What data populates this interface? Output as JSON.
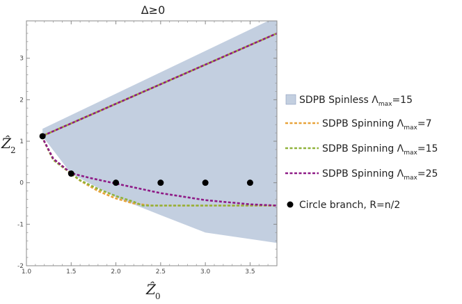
{
  "chart_data": {
    "type": "line",
    "title": "Δ≥0",
    "xlabel": "Ẑ",
    "xlabel_sub": "0",
    "ylabel": "Ẑ",
    "ylabel_sub": "2",
    "xlim": [
      1.0,
      3.8
    ],
    "ylim": [
      -2.0,
      3.9
    ],
    "x_ticks": [
      1.0,
      1.5,
      2.0,
      2.5,
      3.0,
      3.5
    ],
    "x_tick_labels": [
      "1.0",
      "1.5",
      "2.0",
      "2.5",
      "3.0",
      "3.5"
    ],
    "y_ticks": [
      -2,
      -1,
      0,
      1,
      2,
      3
    ],
    "y_tick_labels": [
      "-2",
      "-1",
      "0",
      "1",
      "2",
      "3"
    ],
    "grid": false,
    "legend_position": "right",
    "region": {
      "name": "SDPB Spinless Λ",
      "name_sub": "max",
      "name_tail": "=15",
      "color": "#c3cfe0",
      "upper": [
        [
          1.18,
          1.3
        ],
        [
          3.8,
          4.0
        ]
      ],
      "lower": [
        [
          1.18,
          1.12
        ],
        [
          1.5,
          0.22
        ],
        [
          2.0,
          -0.35
        ],
        [
          2.5,
          -0.78
        ],
        [
          3.0,
          -1.2
        ],
        [
          3.8,
          -1.45
        ]
      ]
    },
    "series": [
      {
        "name": "SDPB Spinning Λ",
        "name_sub": "max",
        "name_tail": "=7",
        "color": "#e8a33a",
        "upper": [
          [
            1.17,
            1.12
          ],
          [
            3.8,
            3.6
          ]
        ],
        "lower": [
          [
            1.17,
            1.12
          ],
          [
            1.3,
            0.55
          ],
          [
            1.5,
            0.22
          ],
          [
            1.6,
            0.05
          ],
          [
            1.8,
            -0.2
          ],
          [
            2.0,
            -0.38
          ],
          [
            2.2,
            -0.5
          ],
          [
            2.4,
            -0.55
          ],
          [
            3.0,
            -0.55
          ],
          [
            3.8,
            -0.55
          ]
        ]
      },
      {
        "name": "SDPB Spinning Λ",
        "name_sub": "max",
        "name_tail": "=15",
        "color": "#8fb23a",
        "upper": [
          [
            1.17,
            1.12
          ],
          [
            3.8,
            3.6
          ]
        ],
        "lower": [
          [
            1.17,
            1.12
          ],
          [
            1.3,
            0.55
          ],
          [
            1.5,
            0.22
          ],
          [
            1.6,
            0.06
          ],
          [
            1.8,
            -0.15
          ],
          [
            2.0,
            -0.32
          ],
          [
            2.2,
            -0.46
          ],
          [
            2.3,
            -0.55
          ],
          [
            3.0,
            -0.55
          ],
          [
            3.8,
            -0.55
          ]
        ]
      },
      {
        "name": "SDPB Spinning Λ",
        "name_sub": "max",
        "name_tail": "=25",
        "color": "#8e1a86",
        "upper": [
          [
            1.17,
            1.12
          ],
          [
            3.8,
            3.6
          ]
        ],
        "lower": [
          [
            1.17,
            1.12
          ],
          [
            1.3,
            0.58
          ],
          [
            1.5,
            0.23
          ],
          [
            1.7,
            0.12
          ],
          [
            2.0,
            -0.02
          ],
          [
            2.5,
            -0.25
          ],
          [
            3.0,
            -0.42
          ],
          [
            3.5,
            -0.52
          ],
          [
            3.8,
            -0.55
          ]
        ]
      }
    ],
    "points": {
      "name": "Circle branch, R=n/2",
      "color": "#000000",
      "values": [
        [
          1.18,
          1.12
        ],
        [
          1.5,
          0.22
        ],
        [
          2.0,
          0.0
        ],
        [
          2.5,
          0.0
        ],
        [
          3.0,
          0.0
        ],
        [
          3.5,
          0.0
        ]
      ]
    }
  }
}
